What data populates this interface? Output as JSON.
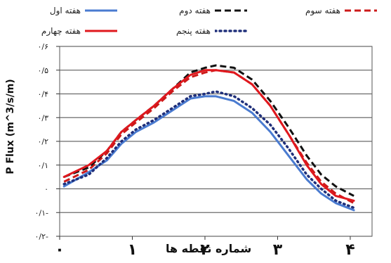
{
  "chart_data": {
    "type": "line",
    "title": "",
    "xlabel": "شماره نقطه ها",
    "ylabel": "P Flux (m^3/s/m)",
    "xlim": [
      0,
      4.3
    ],
    "ylim": [
      -0.2,
      0.6
    ],
    "yticks": [
      {
        "value": 0.6,
        "label": "۰/۶"
      },
      {
        "value": 0.5,
        "label": "۰/۵"
      },
      {
        "value": 0.4,
        "label": "۰/۴"
      },
      {
        "value": 0.3,
        "label": "۰/۳"
      },
      {
        "value": 0.2,
        "label": "۰/۲"
      },
      {
        "value": 0.1,
        "label": "۰/۱"
      },
      {
        "value": 0.0,
        "label": "۰"
      },
      {
        "value": -0.1,
        "label": "۰/۱-"
      },
      {
        "value": -0.2,
        "label": "۰/۲-"
      }
    ],
    "xticks": [
      {
        "value": 0,
        "label": "۰"
      },
      {
        "value": 1,
        "label": "۱"
      },
      {
        "value": 2,
        "label": "۲"
      },
      {
        "value": 3,
        "label": "۳"
      },
      {
        "value": 4,
        "label": "۴"
      }
    ],
    "grid": true,
    "legend_position": "top",
    "x": [
      0.06,
      0.4,
      0.65,
      0.85,
      1.05,
      1.3,
      1.55,
      1.8,
      2.0,
      2.15,
      2.4,
      2.65,
      2.9,
      3.15,
      3.4,
      3.6,
      3.8,
      4.05
    ],
    "series": [
      {
        "name": "هفته اول",
        "color": "#4a7bd0",
        "style": "solid",
        "values": [
          0.01,
          0.07,
          0.12,
          0.19,
          0.24,
          0.28,
          0.33,
          0.38,
          0.39,
          0.39,
          0.37,
          0.32,
          0.24,
          0.14,
          0.04,
          -0.02,
          -0.06,
          -0.09
        ]
      },
      {
        "name": "هفته دوم",
        "color": "#111111",
        "style": "dashed",
        "values": [
          0.05,
          0.09,
          0.16,
          0.24,
          0.29,
          0.35,
          0.42,
          0.49,
          0.51,
          0.52,
          0.51,
          0.46,
          0.37,
          0.26,
          0.14,
          0.06,
          0.01,
          -0.03
        ]
      },
      {
        "name": "هفته سوم",
        "color": "#cc1a1a",
        "style": "dashed",
        "values": [
          0.03,
          0.08,
          0.15,
          0.23,
          0.28,
          0.34,
          0.41,
          0.47,
          0.49,
          0.5,
          0.49,
          0.44,
          0.35,
          0.23,
          0.11,
          0.03,
          -0.02,
          -0.06
        ]
      },
      {
        "name": "هفته چهارم",
        "color": "#e0181e",
        "style": "solid",
        "values": [
          0.05,
          0.1,
          0.16,
          0.24,
          0.29,
          0.35,
          0.42,
          0.48,
          0.5,
          0.5,
          0.49,
          0.44,
          0.35,
          0.23,
          0.1,
          0.02,
          -0.03,
          -0.05
        ]
      },
      {
        "name": "هفته پنجم",
        "color": "#1f2f7a",
        "style": "dotted",
        "values": [
          0.02,
          0.06,
          0.13,
          0.2,
          0.25,
          0.29,
          0.34,
          0.39,
          0.4,
          0.41,
          0.39,
          0.34,
          0.27,
          0.17,
          0.06,
          0.0,
          -0.05,
          -0.08
        ]
      }
    ]
  }
}
